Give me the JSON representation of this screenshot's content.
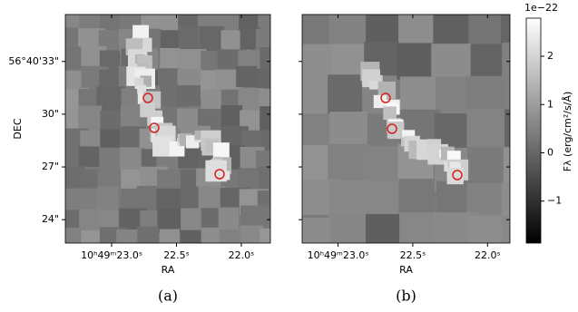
{
  "chart_data": [
    {
      "type": "image",
      "title": "(a)",
      "xlabel": "RA",
      "ylabel": "DEC",
      "xlim": [
        23.357,
        21.776
      ],
      "ylim": [
        22.67,
        35.67
      ],
      "xticks": [
        {
          "value": 23.0,
          "label": "10ʰ49ᵐ23.0ˢ"
        },
        {
          "value": 22.5,
          "label": "22.5ˢ"
        },
        {
          "value": 22.0,
          "label": "22.0ˢ"
        }
      ],
      "yticks": [
        {
          "value": 33,
          "label": "56°40'33\""
        },
        {
          "value": 30,
          "label": "30\""
        },
        {
          "value": 27,
          "label": "27\""
        },
        {
          "value": 24,
          "label": "24\""
        }
      ]
    },
    {
      "type": "image",
      "title": "(b)",
      "xlabel": "RA",
      "xlim": [
        23.24,
        21.85
      ],
      "ylim": [
        22.67,
        35.67
      ],
      "xticks": [
        {
          "value": 23.0,
          "label": "10ʰ49ᵐ23.0ˢ"
        },
        {
          "value": 22.5,
          "label": "22.5ˢ"
        },
        {
          "value": 22.0,
          "label": "22.0ˢ"
        }
      ],
      "yticks": [
        33,
        30,
        27,
        24
      ]
    },
    {
      "type": "colorbar",
      "label": "Fλ (erg/cm²/s/Å)",
      "offset_text": "1e−22",
      "ylim": [
        -1.87,
        2.79
      ],
      "yticks": [
        {
          "value": -1,
          "label": "−1"
        },
        0,
        1,
        2
      ]
    }
  ]
}
